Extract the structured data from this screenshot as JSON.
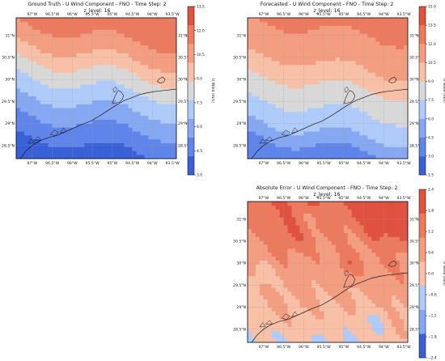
{
  "colors": {
    "coast": "#1a1a1a",
    "grid": "#9a9a9a",
    "wind_levels": [
      "#3a60d8",
      "#5f84ea",
      "#86a8f3",
      "#aecbf9",
      "#d8d8d8",
      "#f7c0a7",
      "#f39d81",
      "#ec7a5e",
      "#e0523f"
    ],
    "error_levels": [
      "#3a60d8",
      "#86a8f3",
      "#aecbf9",
      "#f7c0a7",
      "#f39d81",
      "#ec7a5e",
      "#e0523f"
    ]
  },
  "chart_data": [
    {
      "type": "heatmap",
      "title": "Ground Truth - U Wind Component - FNO - Time Step: 2",
      "subtitle": "z_level: 16",
      "xlim": [
        -97.4,
        -93.4
      ],
      "ylim": [
        28.2,
        31.4
      ],
      "x_ticks": [
        {
          "v": -97.0,
          "label": "97°W"
        },
        {
          "v": -96.5,
          "label": "96.5°W"
        },
        {
          "v": -96.0,
          "label": "96°W"
        },
        {
          "v": -95.5,
          "label": "95.5°W"
        },
        {
          "v": -95.0,
          "label": "95°W"
        },
        {
          "v": -94.5,
          "label": "94.5°W"
        },
        {
          "v": -94.0,
          "label": "94°W"
        },
        {
          "v": -93.5,
          "label": "93.5°W"
        }
      ],
      "y_ticks": [
        {
          "v": 28.5,
          "label": "28.5°N"
        },
        {
          "v": 29.0,
          "label": "29°N"
        },
        {
          "v": 29.5,
          "label": "29.5°N"
        },
        {
          "v": 30.0,
          "label": "30°N"
        },
        {
          "v": 30.5,
          "label": "30.5°N"
        },
        {
          "v": 31.0,
          "label": "31°N"
        }
      ],
      "colorbar": {
        "label": "U Wind (m/s)",
        "min": 3.0,
        "max": 13.5,
        "ticks": [
          "3.0",
          "4.5",
          "6.0",
          "7.5",
          "9.0",
          "10.5",
          "12.0",
          "13.5"
        ]
      },
      "values_south_to_north": [
        3.6,
        4.2,
        4.9,
        5.6,
        6.4,
        7.1,
        8.0,
        8.9,
        9.9,
        10.8,
        11.4,
        11.9
      ]
    },
    {
      "type": "heatmap",
      "title": "Forecasted - U Wind Component - FNO - Time Step: 2",
      "subtitle": "z_level: 16",
      "xlim": [
        -97.4,
        -93.4
      ],
      "ylim": [
        28.2,
        31.4
      ],
      "x_ticks": [
        {
          "v": -97.0,
          "label": "97°W"
        },
        {
          "v": -96.5,
          "label": "96.5°W"
        },
        {
          "v": -96.0,
          "label": "96°W"
        },
        {
          "v": -95.5,
          "label": "95.5°W"
        },
        {
          "v": -95.0,
          "label": "95°W"
        },
        {
          "v": -94.5,
          "label": "94.5°W"
        },
        {
          "v": -94.0,
          "label": "94°W"
        },
        {
          "v": -93.5,
          "label": "93.5°W"
        }
      ],
      "y_ticks": [
        {
          "v": 28.5,
          "label": "28.5°N"
        },
        {
          "v": 29.0,
          "label": "29°N"
        },
        {
          "v": 29.5,
          "label": "29.5°N"
        },
        {
          "v": 30.0,
          "label": "30°N"
        },
        {
          "v": 30.5,
          "label": "30.5°N"
        },
        {
          "v": 31.0,
          "label": "31°N"
        }
      ],
      "colorbar": {
        "label": "U Wind (m/s)",
        "min": 1.5,
        "max": 15.0,
        "ticks": [
          "1.5",
          "3.0",
          "4.5",
          "6.0",
          "7.5",
          "9.0",
          "10.5",
          "12.0",
          "13.5",
          "15.0"
        ]
      },
      "values_south_to_north": [
        3.4,
        4.6,
        5.9,
        6.8,
        7.6,
        8.4,
        9.2,
        10.2,
        11.0,
        11.6,
        12.0,
        12.2
      ]
    },
    {
      "type": "heatmap",
      "title": "Absolute Error - U Wind Component - FNO - Time Step: 2",
      "subtitle": "z_level: 16",
      "xlim": [
        -97.4,
        -93.4
      ],
      "ylim": [
        28.2,
        31.4
      ],
      "x_ticks": [
        {
          "v": -97.0,
          "label": "97°W"
        },
        {
          "v": -96.5,
          "label": "96.5°W"
        },
        {
          "v": -96.0,
          "label": "96°W"
        },
        {
          "v": -95.5,
          "label": "95.5°W"
        },
        {
          "v": -95.0,
          "label": "95°W"
        },
        {
          "v": -94.5,
          "label": "94.5°W"
        },
        {
          "v": -94.0,
          "label": "94°W"
        },
        {
          "v": -93.5,
          "label": "93.5°W"
        }
      ],
      "y_ticks": [
        {
          "v": 28.5,
          "label": "28.5°N"
        },
        {
          "v": 29.0,
          "label": "29°N"
        },
        {
          "v": 29.5,
          "label": "29.5°N"
        },
        {
          "v": 30.0,
          "label": "30°N"
        },
        {
          "v": 30.5,
          "label": "30.5°N"
        },
        {
          "v": 31.0,
          "label": "31°N"
        }
      ],
      "colorbar": {
        "label": "U Wind (m/s)",
        "min": -2.4,
        "max": 2.4,
        "ticks": [
          "−2.4",
          "−1.8",
          "−1.2",
          "−0.6",
          "0.0",
          "0.6",
          "1.2",
          "1.8",
          "2.4"
        ]
      },
      "values_south_to_north": [
        -0.3,
        0.0,
        0.2,
        0.4,
        0.5,
        0.6,
        0.8,
        0.9,
        1.1,
        1.3,
        1.5,
        1.8
      ]
    }
  ]
}
